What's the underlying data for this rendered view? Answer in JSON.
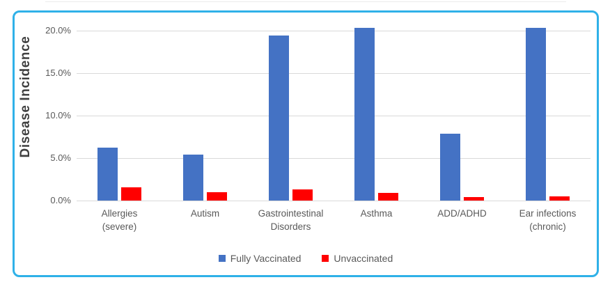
{
  "chart_data": {
    "type": "bar",
    "title": "",
    "xlabel": "",
    "ylabel": "Disease Incidence",
    "ylim": [
      0,
      20
    ],
    "grid": true,
    "legend_position": "bottom",
    "y_tick_labels": [
      "0.0%",
      "5.0%",
      "10.0%",
      "15.0%",
      "20.0%"
    ],
    "y_tick_values": [
      0,
      5,
      10,
      15,
      20
    ],
    "categories": [
      "Allergies (severe)",
      "Autism",
      "Gastrointestinal Disorders",
      "Asthma",
      "ADD/ADHD",
      "Ear infections (chronic)"
    ],
    "category_lines": [
      [
        "Allergies",
        "(severe)"
      ],
      [
        "Autism"
      ],
      [
        "Gastrointestinal",
        "Disorders"
      ],
      [
        "Asthma"
      ],
      [
        "ADD/ADHD"
      ],
      [
        "Ear infections",
        "(chronic)"
      ]
    ],
    "series": [
      {
        "name": "Fully Vaccinated",
        "color": "#4472C4",
        "values": [
          6.2,
          5.4,
          19.4,
          20.3,
          7.9,
          20.3
        ]
      },
      {
        "name": "Unvaccinated",
        "color": "#FF0000",
        "values": [
          1.6,
          1.0,
          1.3,
          0.9,
          0.4,
          0.5
        ]
      }
    ]
  },
  "colors": {
    "frame_border": "#2FB1E8",
    "gridline": "#D9D9D9",
    "tick_text": "#595959",
    "axis_title_text": "#3F3F3F",
    "legend_text": "#595959",
    "background": "#FFFFFF"
  }
}
